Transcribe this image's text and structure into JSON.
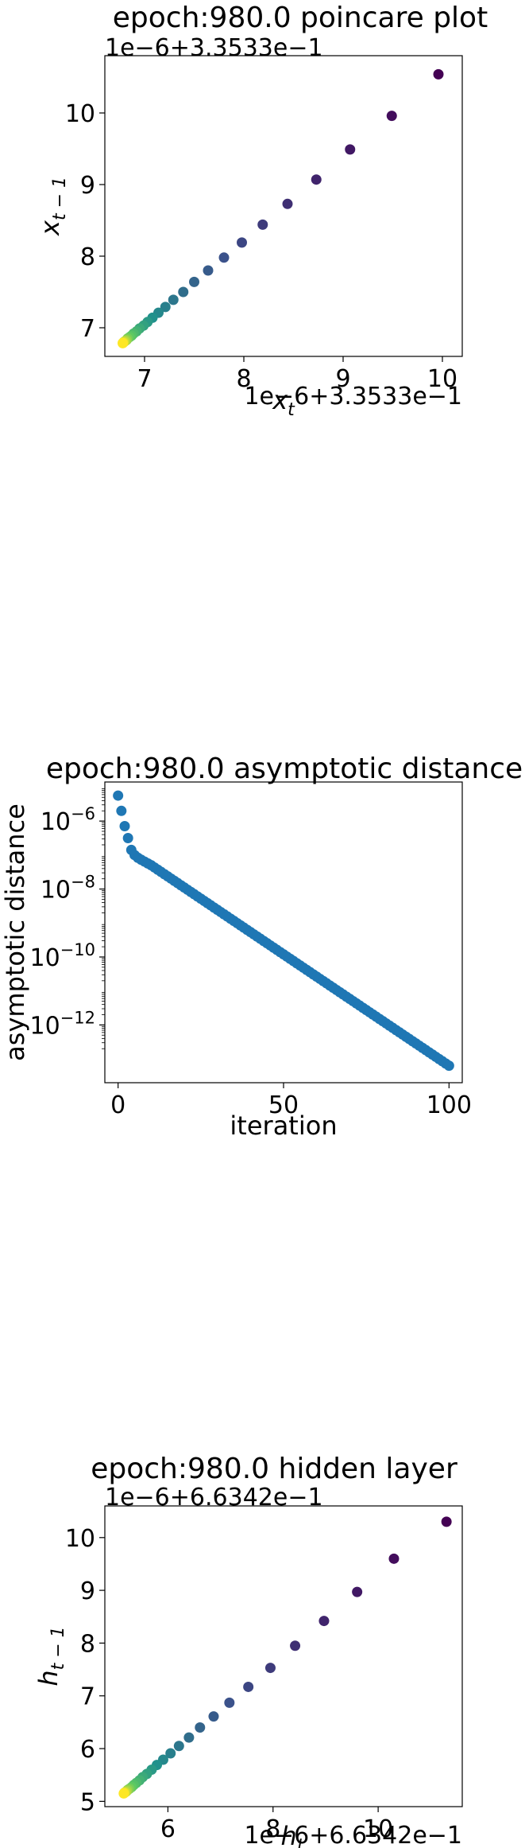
{
  "chart_data": [
    {
      "type": "scatter",
      "title": "epoch:980.0 poincare plot",
      "xlabel": "x_t",
      "ylabel": "x_{t−1}",
      "x_offset_text": "1e−6+3.3533e−1",
      "y_offset_text": "1e−6+3.3533e−1",
      "xlim": [
        6.6,
        10.2
      ],
      "ylim": [
        6.6,
        10.8
      ],
      "x_ticks": [
        7,
        8,
        9,
        10
      ],
      "y_ticks": [
        7,
        8,
        9,
        10
      ],
      "colormap": "viridis",
      "color_encoding": "point index (early = dark purple, late = yellow)",
      "points": [
        [
          9.96,
          10.54
        ],
        [
          9.49,
          9.96
        ],
        [
          9.07,
          9.49
        ],
        [
          8.73,
          9.07
        ],
        [
          8.44,
          8.73
        ],
        [
          8.19,
          8.44
        ],
        [
          7.98,
          8.19
        ],
        [
          7.8,
          7.98
        ],
        [
          7.64,
          7.8
        ],
        [
          7.5,
          7.64
        ],
        [
          7.39,
          7.5
        ],
        [
          7.29,
          7.39
        ],
        [
          7.21,
          7.29
        ],
        [
          7.14,
          7.21
        ],
        [
          7.08,
          7.14
        ],
        [
          7.03,
          7.08
        ],
        [
          6.99,
          7.03
        ],
        [
          6.95,
          6.99
        ],
        [
          6.92,
          6.95
        ],
        [
          6.89,
          6.92
        ],
        [
          6.87,
          6.89
        ],
        [
          6.85,
          6.87
        ],
        [
          6.83,
          6.85
        ],
        [
          6.82,
          6.83
        ],
        [
          6.81,
          6.82
        ],
        [
          6.8,
          6.81
        ],
        [
          6.79,
          6.8
        ],
        [
          6.785,
          6.79
        ],
        [
          6.78,
          6.785
        ]
      ]
    },
    {
      "type": "scatter",
      "title": "epoch:980.0 asymptotic distance",
      "xlabel": "iteration",
      "ylabel": "asymptotic distance",
      "yscale": "log",
      "xlim": [
        -4,
        104
      ],
      "ylim_log10": [
        -13.7,
        -4.85
      ],
      "x_ticks": [
        0,
        50,
        100
      ],
      "y_ticks": [
        "10^−6",
        "10^−8",
        "10^−10",
        "10^−12"
      ],
      "y_tick_exponents": [
        -6,
        -8,
        -10,
        -12
      ],
      "color": "#1f77b4",
      "log10_distance_anchors": [
        [
          0,
          -5.25
        ],
        [
          1,
          -5.7
        ],
        [
          2,
          -6.15
        ],
        [
          3,
          -6.5
        ],
        [
          4,
          -6.85
        ],
        [
          5,
          -7.0
        ],
        [
          6,
          -7.08
        ],
        [
          7,
          -7.14
        ],
        [
          10,
          -7.3
        ],
        [
          100,
          -13.2
        ]
      ]
    },
    {
      "type": "scatter",
      "title": "epoch:980.0 hidden layer",
      "xlabel": "h_t",
      "ylabel": "h_{t−1}",
      "x_offset_text": "1e−6+6.6342e−1",
      "y_offset_text": "1e−6+6.6342e−1",
      "xlim": [
        4.8,
        11.6
      ],
      "ylim": [
        4.9,
        10.6
      ],
      "x_ticks": [
        6,
        8,
        10
      ],
      "y_ticks": [
        5,
        6,
        7,
        8,
        9,
        10
      ],
      "colormap": "viridis",
      "color_encoding": "point index (early = dark purple, late = yellow)",
      "points": [
        [
          11.3,
          10.3
        ],
        [
          10.3,
          9.6
        ],
        [
          9.6,
          8.97
        ],
        [
          8.97,
          8.42
        ],
        [
          8.42,
          7.95
        ],
        [
          7.95,
          7.53
        ],
        [
          7.53,
          7.17
        ],
        [
          7.17,
          6.87
        ],
        [
          6.87,
          6.61
        ],
        [
          6.61,
          6.4
        ],
        [
          6.4,
          6.21
        ],
        [
          6.21,
          6.05
        ],
        [
          6.05,
          5.91
        ],
        [
          5.91,
          5.79
        ],
        [
          5.79,
          5.69
        ],
        [
          5.69,
          5.6
        ],
        [
          5.6,
          5.52
        ],
        [
          5.52,
          5.46
        ],
        [
          5.46,
          5.4
        ],
        [
          5.4,
          5.35
        ],
        [
          5.35,
          5.31
        ],
        [
          5.31,
          5.27
        ],
        [
          5.27,
          5.24
        ],
        [
          5.24,
          5.22
        ],
        [
          5.22,
          5.2
        ],
        [
          5.2,
          5.18
        ],
        [
          5.18,
          5.17
        ],
        [
          5.17,
          5.16
        ],
        [
          5.16,
          5.15
        ]
      ]
    }
  ]
}
